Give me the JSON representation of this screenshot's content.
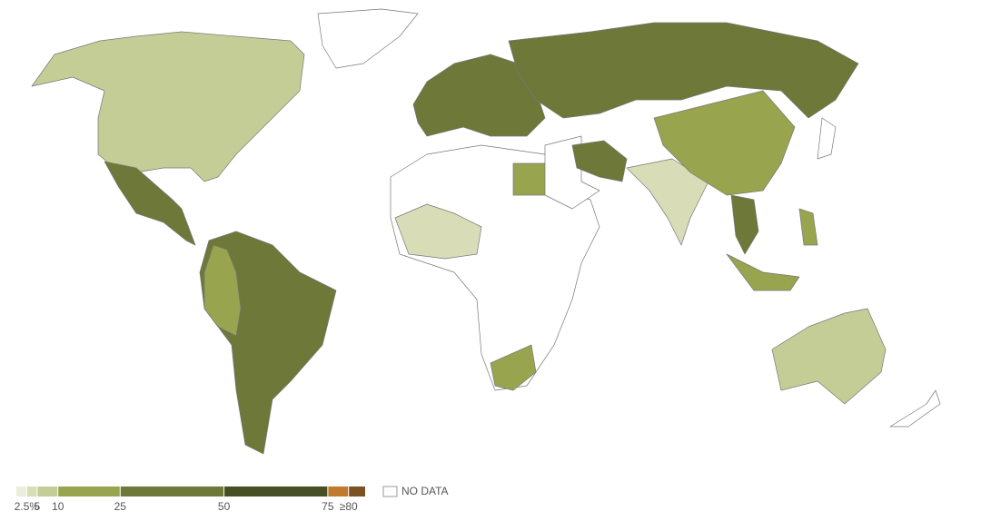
{
  "legend": {
    "ticks": [
      {
        "value": 2.5,
        "label": "2.5%"
      },
      5,
      10,
      25,
      50,
      75,
      {
        "value": 80,
        "label": "≥80"
      }
    ],
    "xlim": [
      0,
      84
    ],
    "colors": [
      "#eceedc",
      "#d8ddb8",
      "#c5cd96",
      "#99a44f",
      "#6d7839",
      "#474f24",
      "#c07a2e",
      "#7b5222"
    ],
    "no_data_label": "NO DATA"
  }
}
